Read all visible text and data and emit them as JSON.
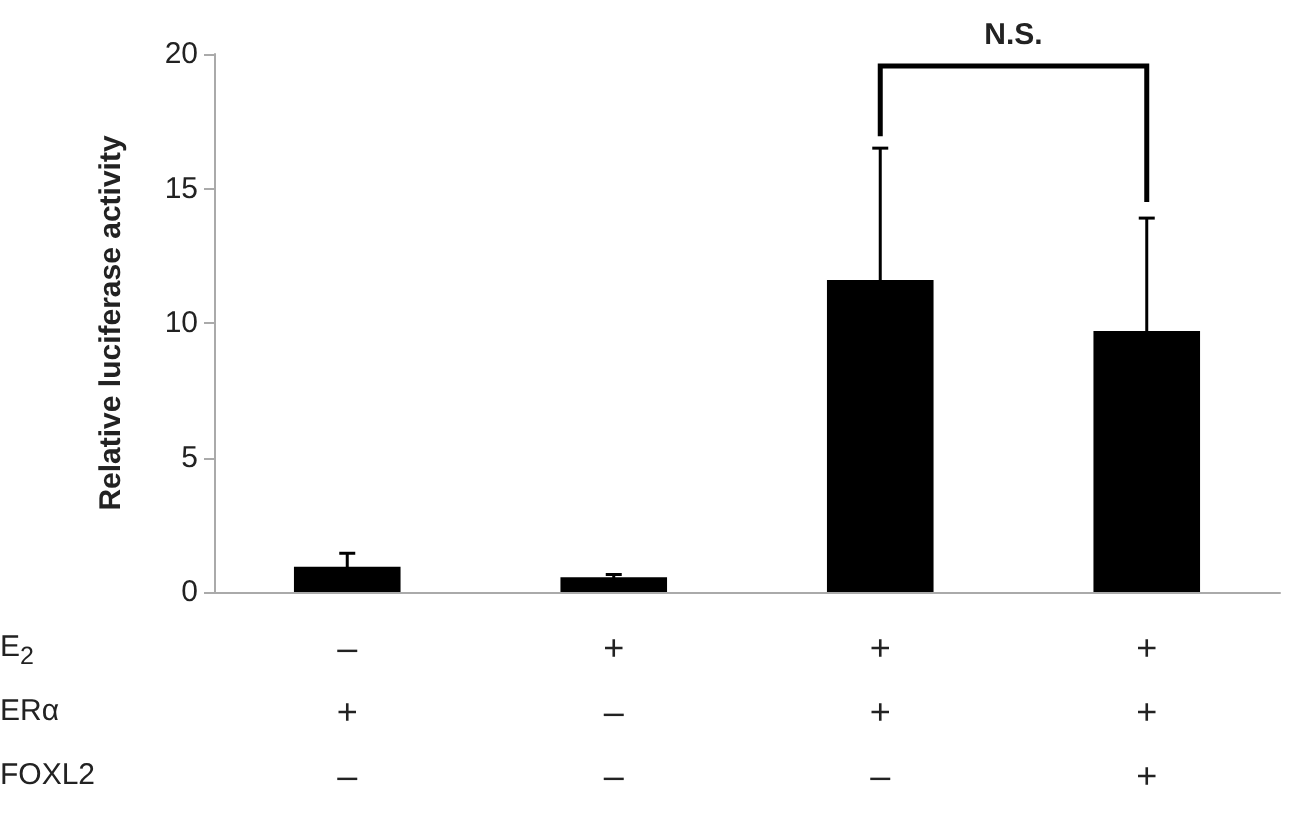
{
  "chart_data": {
    "type": "bar",
    "ylabel": "Relative luciferase activity",
    "categories": [
      "–\n+\n–",
      "+\n–\n–",
      "+\n+\n–",
      "+\n+\n+"
    ],
    "values": [
      0.94,
      0.55,
      11.6,
      9.7
    ],
    "errors": [
      0.5,
      0.1,
      4.9,
      4.2
    ],
    "color": "#000000",
    "ylim": [
      0,
      20
    ],
    "yticks": [
      0,
      5,
      10,
      15,
      20
    ],
    "grid": false,
    "annotations": [
      "N.S.",
      "E$_{2}$",
      "ERα",
      "FOXL2"
    ]
  }
}
